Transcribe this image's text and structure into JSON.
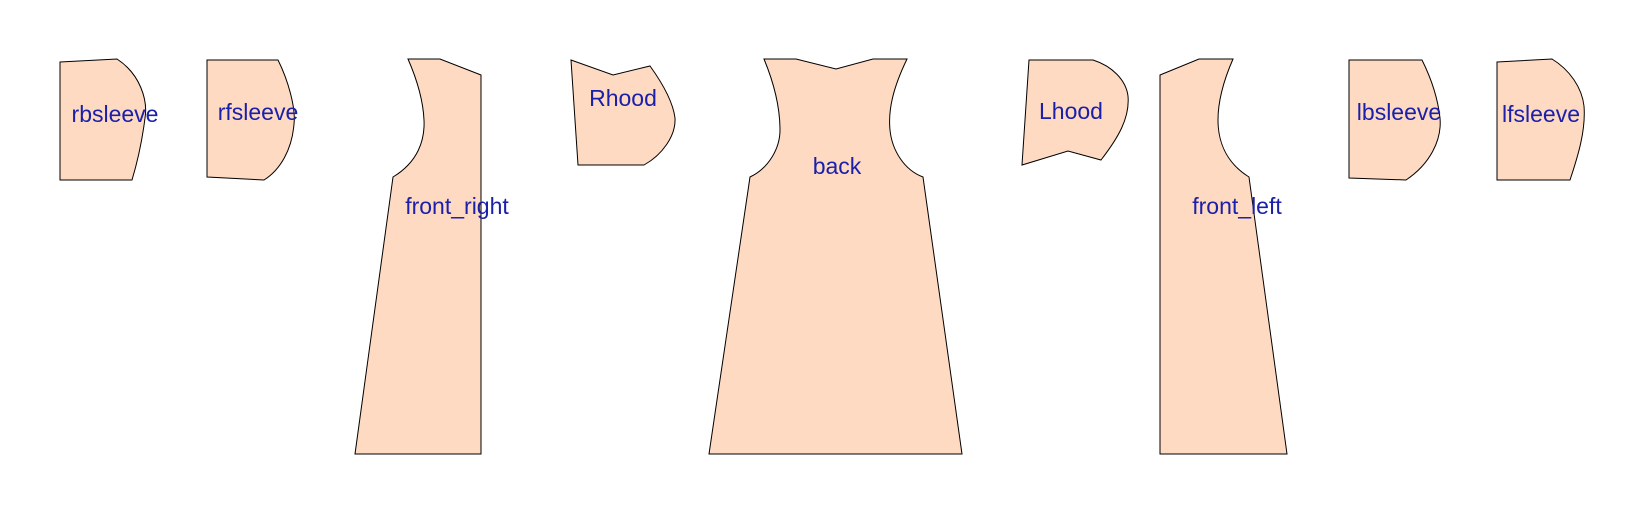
{
  "colors": {
    "piece_fill": "#fedac2",
    "piece_stroke": "#000000",
    "label_color": "#1a20a9",
    "background": "#ffffff"
  },
  "pieces": [
    {
      "id": "rbsleeve",
      "label": "rbsleeve"
    },
    {
      "id": "rfsleeve",
      "label": "rfsleeve"
    },
    {
      "id": "front_right",
      "label": "front_right"
    },
    {
      "id": "rhood",
      "label": "Rhood"
    },
    {
      "id": "back",
      "label": "back"
    },
    {
      "id": "lhood",
      "label": "Lhood"
    },
    {
      "id": "front_left",
      "label": "front_left"
    },
    {
      "id": "lbsleeve",
      "label": "lbsleeve"
    },
    {
      "id": "lfsleeve",
      "label": "lfsleeve"
    }
  ]
}
